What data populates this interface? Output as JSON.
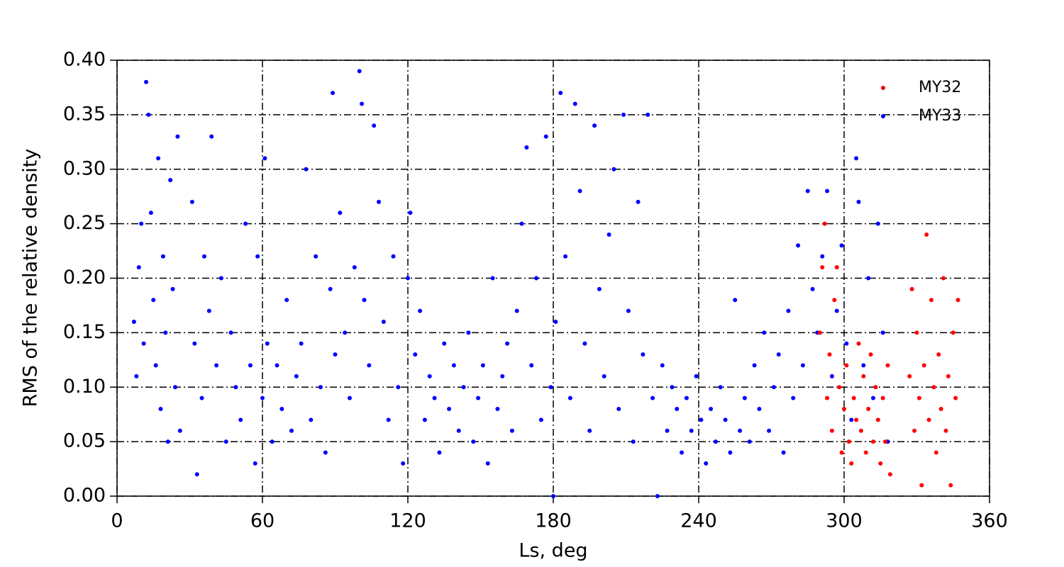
{
  "chart_data": {
    "type": "scatter",
    "xlabel": "Ls, deg",
    "ylabel": "RMS of the relative density",
    "xlim": [
      0,
      360
    ],
    "xticks": [
      0,
      60,
      120,
      180,
      240,
      300,
      360
    ],
    "ylim": [
      0,
      0.4
    ],
    "yticks": [
      {
        "value": 0,
        "label": "0.00"
      },
      {
        "value": 0.05,
        "label": "0.05"
      },
      {
        "value": 0.1,
        "label": "0.10"
      },
      {
        "value": 0.15,
        "label": "0.15"
      },
      {
        "value": 0.2,
        "label": "0.20"
      },
      {
        "value": 0.25,
        "label": "0.25"
      },
      {
        "value": 0.3,
        "label": "0.30"
      },
      {
        "value": 0.35,
        "label": "0.35"
      },
      {
        "value": 0.4,
        "label": "0.40"
      }
    ],
    "grid": true,
    "legend": "upper right",
    "series": [
      {
        "name": "MY32",
        "color": "#ff0000",
        "x": [
          290,
          291,
          292,
          293,
          294,
          295,
          296,
          297,
          298,
          299,
          300,
          301,
          302,
          303,
          304,
          305,
          306,
          307,
          308,
          309,
          310,
          311,
          312,
          313,
          314,
          315,
          316,
          317,
          318,
          319,
          327,
          328,
          329,
          330,
          331,
          332,
          333,
          334,
          335,
          336,
          337,
          338,
          339,
          340,
          341,
          342,
          343,
          344,
          345,
          346,
          347
        ],
        "values": [
          0.15,
          0.21,
          0.25,
          0.09,
          0.13,
          0.06,
          0.18,
          0.21,
          0.1,
          0.04,
          0.08,
          0.12,
          0.05,
          0.03,
          0.09,
          0.07,
          0.14,
          0.06,
          0.11,
          0.04,
          0.08,
          0.13,
          0.05,
          0.1,
          0.07,
          0.03,
          0.09,
          0.05,
          0.12,
          0.02,
          0.11,
          0.19,
          0.06,
          0.15,
          0.09,
          0.01,
          0.12,
          0.24,
          0.07,
          0.18,
          0.1,
          0.04,
          0.13,
          0.08,
          0.2,
          0.06,
          0.11,
          0.01,
          0.15,
          0.09,
          0.18
        ]
      },
      {
        "name": "MY33",
        "color": "#0000ff",
        "x": [
          7,
          8,
          9,
          10,
          11,
          12,
          13,
          14,
          15,
          16,
          17,
          18,
          19,
          20,
          21,
          22,
          23,
          24,
          25,
          26,
          31,
          32,
          33,
          35,
          36,
          38,
          39,
          41,
          43,
          45,
          47,
          49,
          51,
          53,
          55,
          57,
          58,
          60,
          61,
          62,
          64,
          66,
          68,
          70,
          72,
          74,
          76,
          78,
          80,
          82,
          84,
          86,
          88,
          89,
          90,
          92,
          94,
          96,
          98,
          100,
          101,
          102,
          104,
          106,
          108,
          110,
          112,
          114,
          116,
          118,
          120,
          121,
          123,
          125,
          127,
          129,
          131,
          133,
          135,
          137,
          139,
          141,
          143,
          145,
          147,
          149,
          151,
          153,
          155,
          157,
          159,
          161,
          163,
          165,
          167,
          169,
          171,
          173,
          175,
          177,
          179,
          180,
          181,
          183,
          185,
          187,
          189,
          191,
          193,
          195,
          197,
          199,
          201,
          203,
          205,
          207,
          209,
          211,
          213,
          215,
          217,
          219,
          221,
          223,
          225,
          227,
          229,
          231,
          233,
          235,
          237,
          239,
          241,
          243,
          245,
          247,
          249,
          251,
          253,
          255,
          257,
          259,
          261,
          263,
          265,
          267,
          269,
          271,
          273,
          275,
          277,
          279,
          281,
          283,
          285,
          287,
          289,
          291,
          293,
          295,
          297,
          299,
          301,
          303,
          305,
          306,
          308,
          310,
          312,
          314,
          316,
          318
        ],
        "values": [
          0.16,
          0.11,
          0.21,
          0.25,
          0.14,
          0.38,
          0.35,
          0.26,
          0.18,
          0.12,
          0.31,
          0.08,
          0.22,
          0.15,
          0.05,
          0.29,
          0.19,
          0.1,
          0.33,
          0.06,
          0.27,
          0.14,
          0.02,
          0.09,
          0.22,
          0.17,
          0.33,
          0.12,
          0.2,
          0.05,
          0.15,
          0.1,
          0.07,
          0.25,
          0.12,
          0.03,
          0.22,
          0.09,
          0.31,
          0.14,
          0.05,
          0.12,
          0.08,
          0.18,
          0.06,
          0.11,
          0.14,
          0.3,
          0.07,
          0.22,
          0.1,
          0.04,
          0.19,
          0.37,
          0.13,
          0.26,
          0.15,
          0.09,
          0.21,
          0.39,
          0.36,
          0.18,
          0.12,
          0.34,
          0.27,
          0.16,
          0.07,
          0.22,
          0.1,
          0.03,
          0.2,
          0.26,
          0.13,
          0.17,
          0.07,
          0.11,
          0.09,
          0.04,
          0.14,
          0.08,
          0.12,
          0.06,
          0.1,
          0.15,
          0.05,
          0.09,
          0.12,
          0.03,
          0.2,
          0.08,
          0.11,
          0.14,
          0.06,
          0.17,
          0.25,
          0.32,
          0.12,
          0.2,
          0.07,
          0.33,
          0.1,
          0,
          0.16,
          0.37,
          0.22,
          0.09,
          0.36,
          0.28,
          0.14,
          0.06,
          0.34,
          0.19,
          0.11,
          0.24,
          0.3,
          0.08,
          0.35,
          0.17,
          0.05,
          0.27,
          0.13,
          0.35,
          0.09,
          0,
          0.12,
          0.06,
          0.1,
          0.08,
          0.04,
          0.09,
          0.06,
          0.11,
          0.07,
          0.03,
          0.08,
          0.05,
          0.1,
          0.07,
          0.04,
          0.18,
          0.06,
          0.09,
          0.05,
          0.12,
          0.08,
          0.15,
          0.06,
          0.1,
          0.13,
          0.04,
          0.17,
          0.09,
          0.23,
          0.12,
          0.28,
          0.19,
          0.15,
          0.22,
          0.28,
          0.11,
          0.17,
          0.23,
          0.14,
          0.07,
          0.31,
          0.27,
          0.12,
          0.2,
          0.09,
          0.25,
          0.15,
          0.05
        ]
      }
    ]
  }
}
